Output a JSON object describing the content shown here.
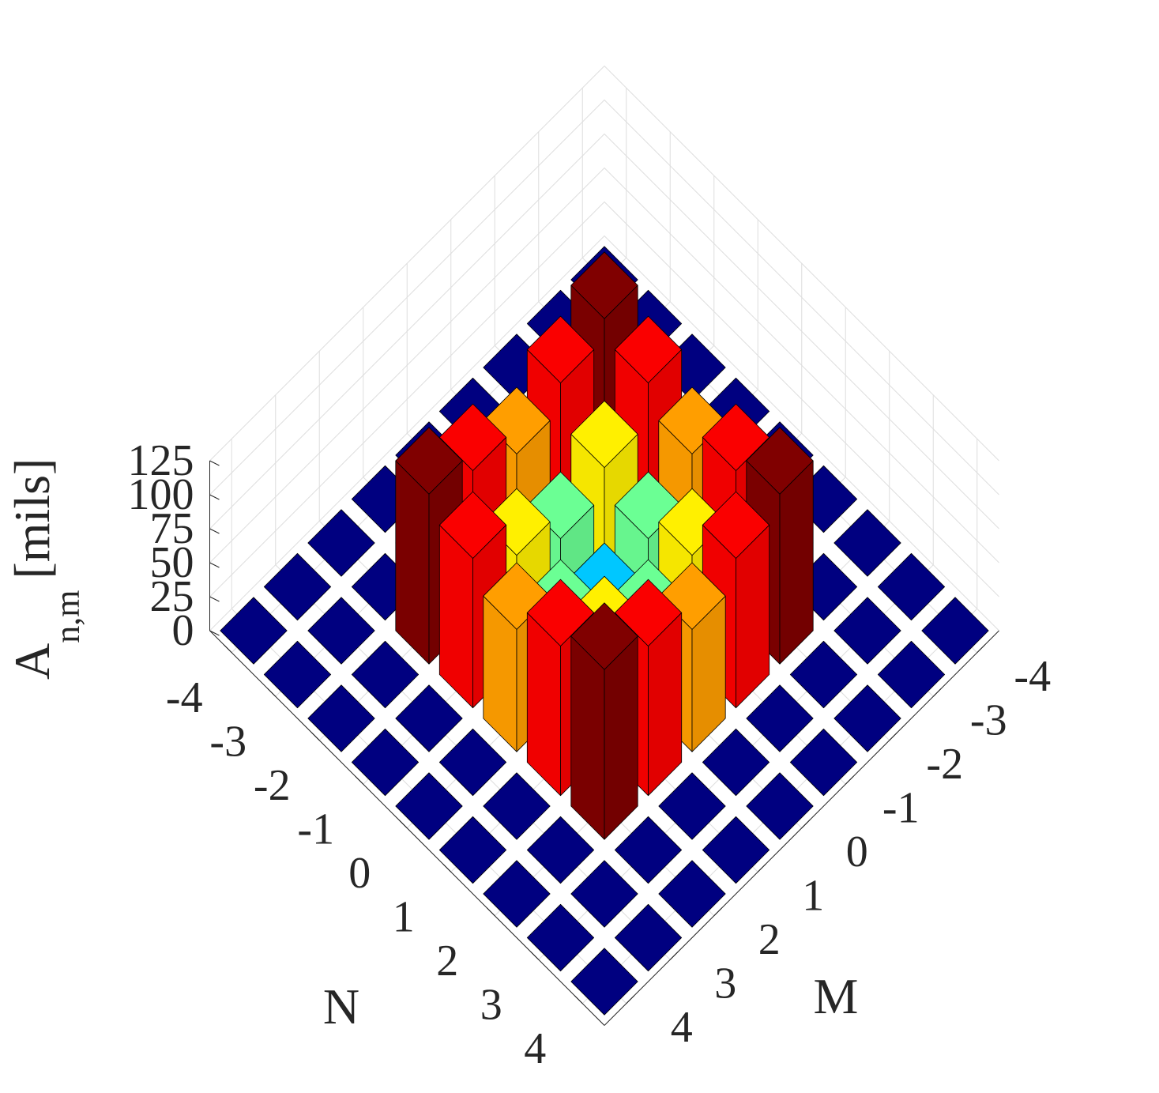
{
  "chart_data": {
    "type": "bar3",
    "title": "",
    "xlabel": "M",
    "ylabel": "N",
    "zlabel": {
      "main": "A",
      "subscript": "n,m",
      "unit": "[mils]"
    },
    "x_ticks": [
      "-4",
      "-3",
      "-2",
      "-1",
      "0",
      "1",
      "2",
      "3",
      "4"
    ],
    "y_ticks": [
      "-4",
      "-3",
      "-2",
      "-1",
      "0",
      "1",
      "2",
      "3",
      "4"
    ],
    "z_ticks": [
      "0",
      "25",
      "50",
      "75",
      "100",
      "125"
    ],
    "zlim": [
      0,
      125
    ],
    "grid": true,
    "colormap": "jet",
    "M": [
      -4,
      -3,
      -2,
      -1,
      0,
      1,
      2,
      3,
      4
    ],
    "N": [
      -4,
      -3,
      -2,
      -1,
      0,
      1,
      2,
      3,
      4
    ],
    "values": [
      [
        0,
        0,
        0,
        0,
        0,
        0,
        0,
        0,
        0
      ],
      [
        0,
        0,
        0,
        0,
        0,
        0,
        0,
        0,
        0
      ],
      [
        0,
        0,
        125,
        110,
        90,
        110,
        125,
        0,
        0
      ],
      [
        0,
        0,
        110,
        80,
        60,
        80,
        110,
        0,
        0
      ],
      [
        0,
        0,
        90,
        60,
        40,
        60,
        90,
        0,
        0
      ],
      [
        0,
        0,
        110,
        80,
        60,
        80,
        110,
        0,
        0
      ],
      [
        0,
        0,
        125,
        110,
        90,
        110,
        125,
        0,
        0
      ],
      [
        0,
        0,
        0,
        0,
        0,
        0,
        0,
        0,
        0
      ],
      [
        0,
        0,
        0,
        0,
        0,
        0,
        0,
        0,
        0
      ]
    ]
  }
}
